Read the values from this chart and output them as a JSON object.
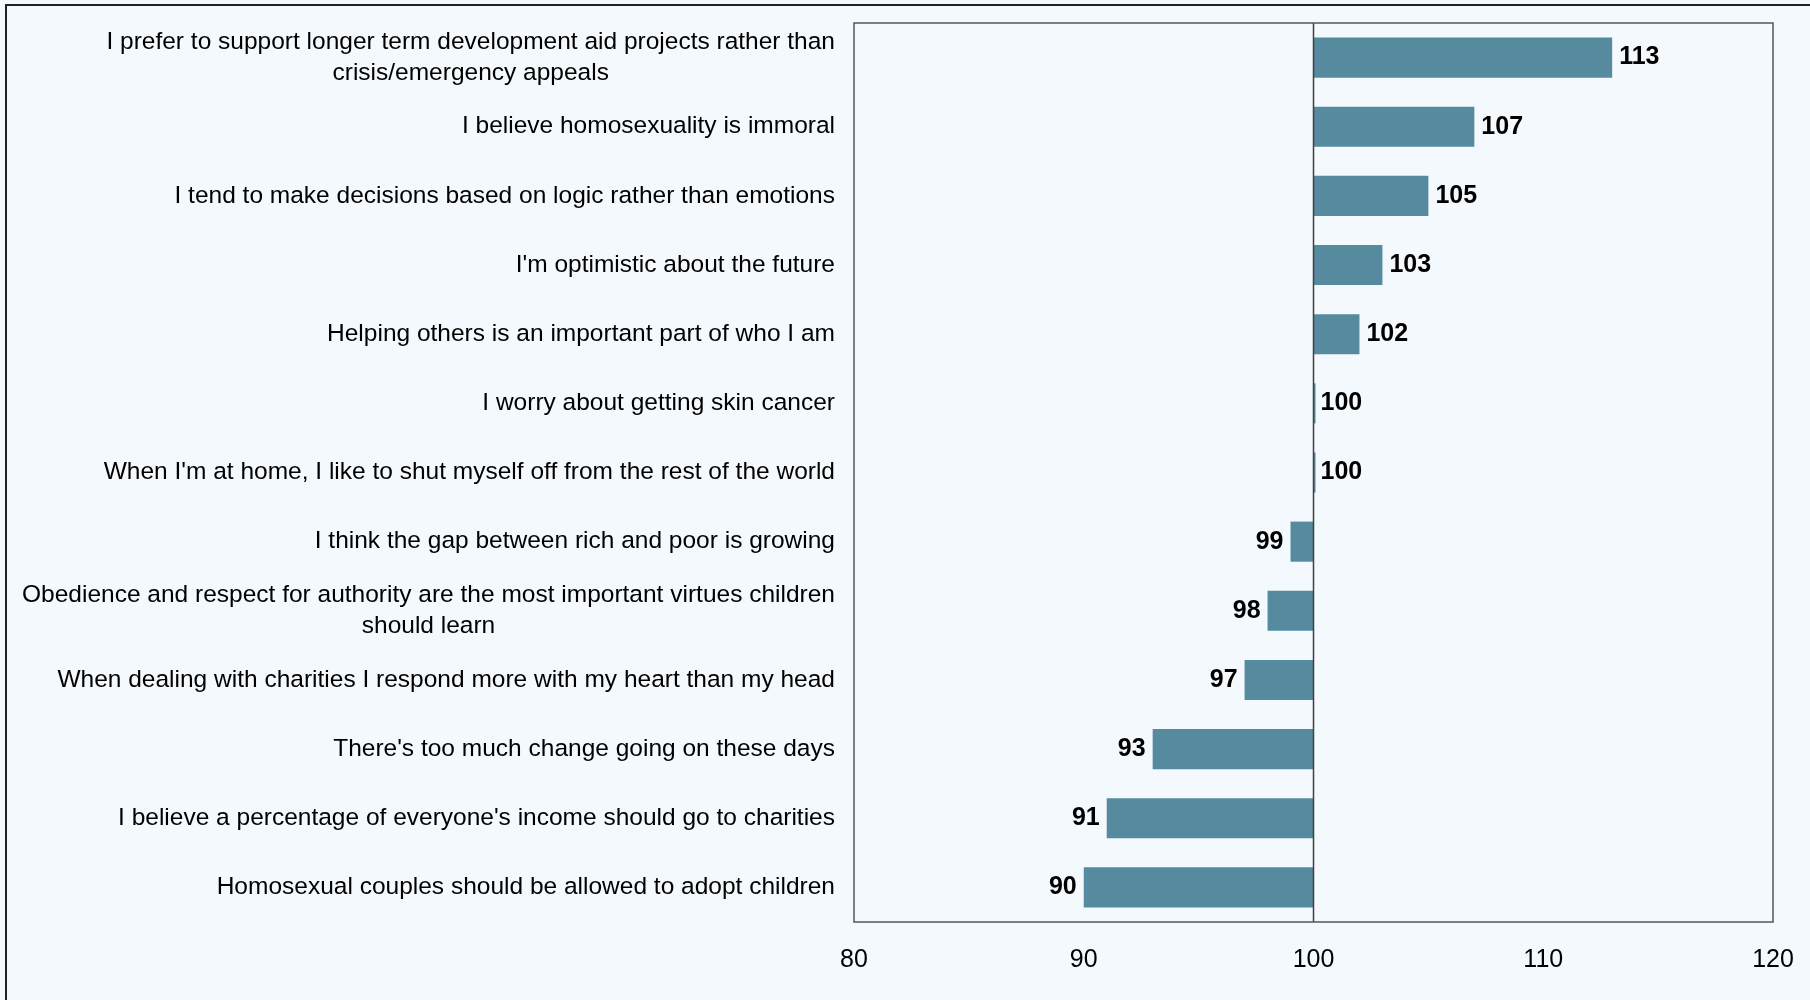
{
  "chart_data": {
    "type": "bar",
    "orientation": "horizontal",
    "categories": [
      "I prefer to support longer term development aid projects rather than crisis/emergency appeals",
      "I believe homosexuality is immoral",
      "I tend to make decisions based on logic rather than emotions",
      "I'm optimistic about the future",
      "Helping others is an important part of who I am",
      "I worry about getting skin cancer",
      "When I'm at home, I like to shut myself off from the rest of the world",
      "I think the gap between rich and poor is growing",
      "Obedience and respect for authority are the most important virtues children should learn",
      "When dealing with charities I respond more with my heart than my head",
      "There's too much change going on these days",
      "I believe a percentage of everyone's income should go to charities",
      "Homosexual couples should be allowed to adopt children"
    ],
    "base": [
      100,
      100,
      100,
      100,
      100,
      100,
      100,
      100,
      100,
      100,
      100,
      100,
      100
    ],
    "values": [
      13,
      7,
      5,
      3,
      2,
      0,
      0,
      -1,
      -2,
      -3,
      -7,
      -9,
      -10
    ],
    "value_labels": [
      "113",
      "107",
      "105",
      "103",
      "102",
      "100",
      "100",
      "99",
      "98",
      "97",
      "93",
      "91",
      "90"
    ],
    "color": "#568a9f",
    "xlim": [
      80,
      120
    ],
    "xticks": [
      80,
      90,
      100,
      110,
      120
    ],
    "ref_lines": [
      {
        "axis": "x",
        "value": 100,
        "color": "#404040"
      }
    ]
  }
}
